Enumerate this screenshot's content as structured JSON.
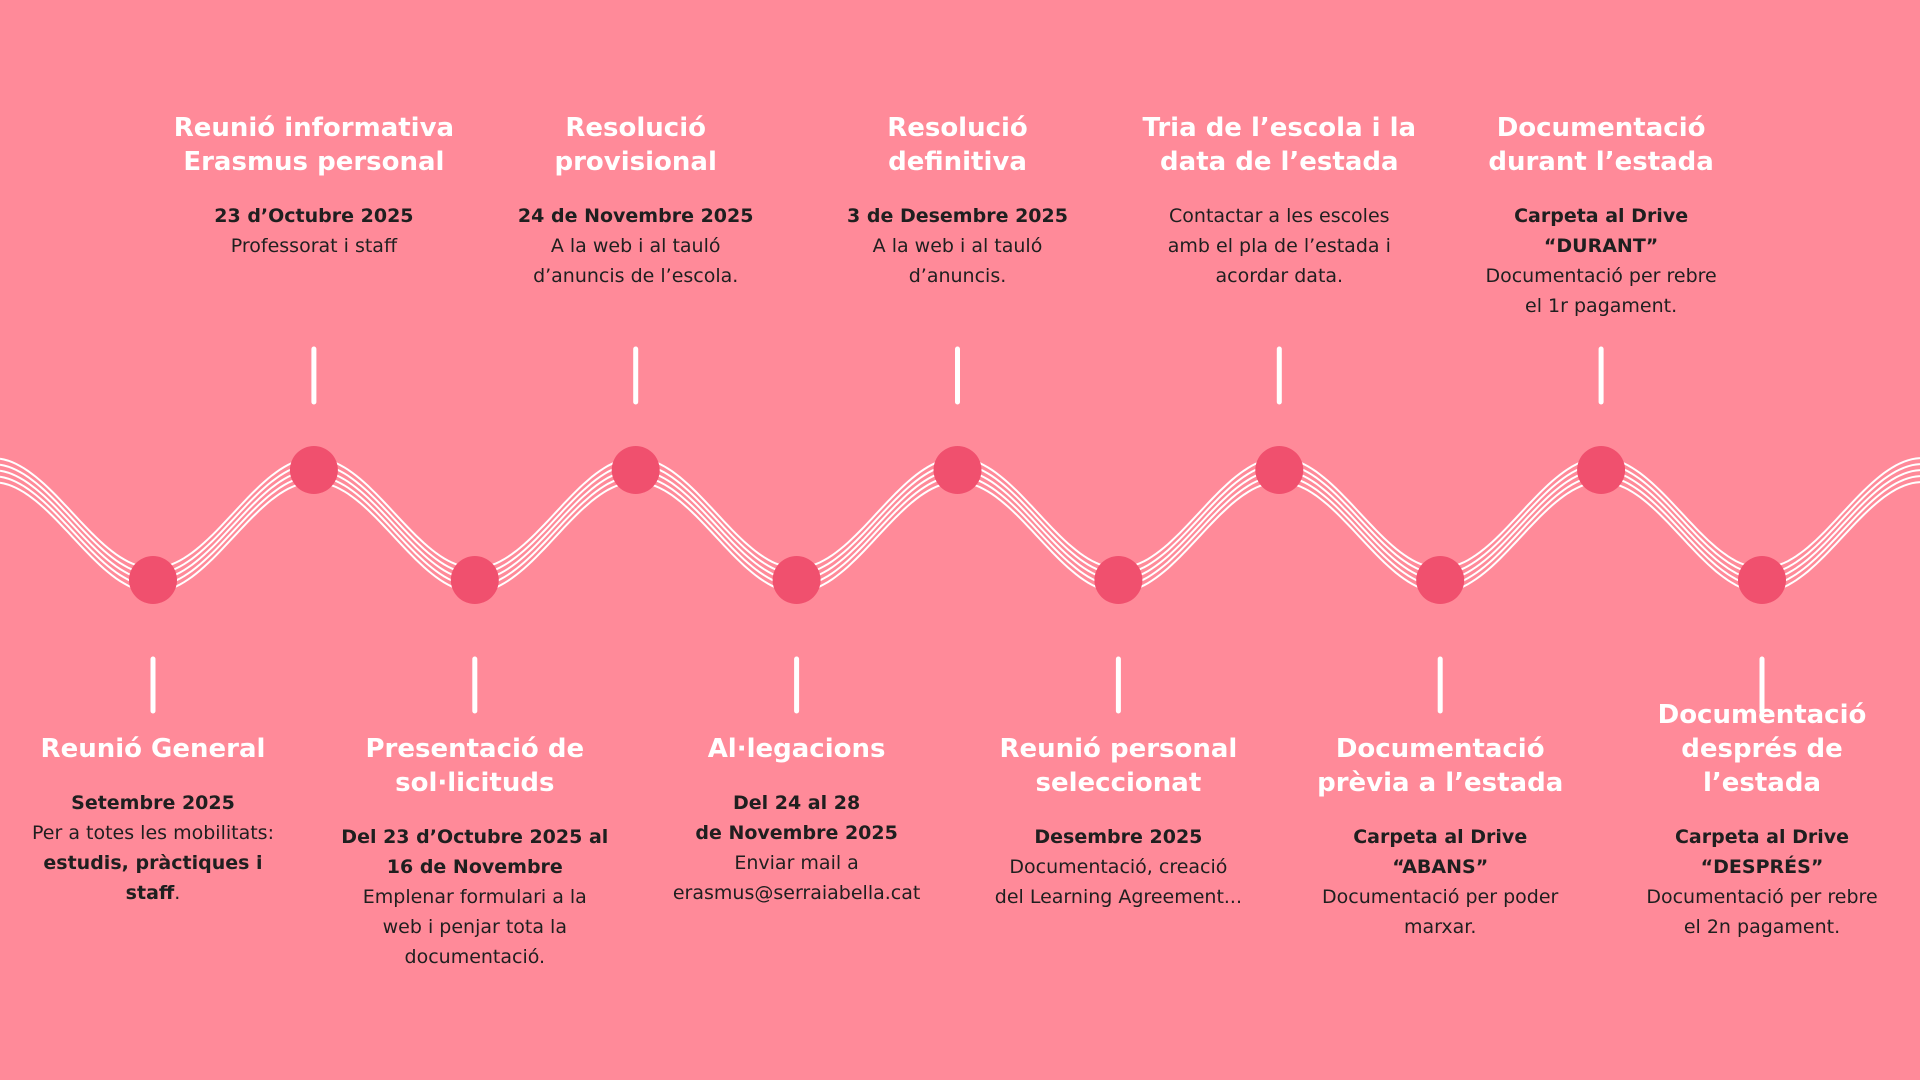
{
  "timeline": {
    "items": [
      {
        "title": [
          "Reunió General"
        ],
        "body": [
          [
            {
              "text": "Setembre 2025",
              "bold": true
            }
          ],
          [
            {
              "text": "Per a totes les mobilitats:",
              "bold": false
            }
          ],
          [
            {
              "text": "estudis, pràctiques i",
              "bold": true
            }
          ],
          [
            {
              "text": "staff",
              "bold": true
            },
            {
              "text": ".",
              "bold": false
            }
          ]
        ]
      },
      {
        "title": [
          "Reunió informativa",
          "Erasmus personal"
        ],
        "body": [
          [
            {
              "text": "23 d’Octubre 2025",
              "bold": true
            }
          ],
          [
            {
              "text": "Professorat i staff",
              "bold": false
            }
          ]
        ]
      },
      {
        "title": [
          "Presentació de",
          "sol·licituds"
        ],
        "body": [
          [
            {
              "text": "Del 23 d’Octubre 2025 al",
              "bold": true
            }
          ],
          [
            {
              "text": "16 de Novembre",
              "bold": true
            }
          ],
          [
            {
              "text": "Emplenar formulari a la",
              "bold": false
            }
          ],
          [
            {
              "text": "web i penjar tota la",
              "bold": false
            }
          ],
          [
            {
              "text": "documentació.",
              "bold": false
            }
          ]
        ]
      },
      {
        "title": [
          "Resolució",
          "provisional"
        ],
        "body": [
          [
            {
              "text": "24 de Novembre 2025",
              "bold": true
            }
          ],
          [
            {
              "text": "A la web i al tauló",
              "bold": false
            }
          ],
          [
            {
              "text": "d’anuncis de l’escola.",
              "bold": false
            }
          ]
        ]
      },
      {
        "title": [
          "Al·legacions"
        ],
        "body": [
          [
            {
              "text": "Del 24 al 28",
              "bold": true
            }
          ],
          [
            {
              "text": "de Novembre 2025",
              "bold": true
            }
          ],
          [
            {
              "text": "Enviar mail a",
              "bold": false
            }
          ],
          [
            {
              "text": "erasmus@serraiabella.cat",
              "bold": false
            }
          ]
        ]
      },
      {
        "title": [
          "Resolució",
          "definitiva"
        ],
        "body": [
          [
            {
              "text": "3 de Desembre 2025",
              "bold": true
            }
          ],
          [
            {
              "text": "A la web i al tauló",
              "bold": false
            }
          ],
          [
            {
              "text": "d’anuncis.",
              "bold": false
            }
          ]
        ]
      },
      {
        "title": [
          "Reunió personal",
          "seleccionat"
        ],
        "body": [
          [
            {
              "text": "Desembre 2025",
              "bold": true
            }
          ],
          [
            {
              "text": "Documentació, creació",
              "bold": false
            }
          ],
          [
            {
              "text": "del Learning Agreement...",
              "bold": false
            }
          ]
        ]
      },
      {
        "title": [
          "Tria de l’escola i la",
          "data de l’estada"
        ],
        "body": [
          [
            {
              "text": "Contactar a les escoles",
              "bold": false
            }
          ],
          [
            {
              "text": "amb el pla de l’estada i",
              "bold": false
            }
          ],
          [
            {
              "text": "acordar data.",
              "bold": false
            }
          ]
        ]
      },
      {
        "title": [
          "Documentació",
          "prèvia a l’estada"
        ],
        "body": [
          [
            {
              "text": "Carpeta al Drive",
              "bold": true
            }
          ],
          [
            {
              "text": "“ABANS”",
              "bold": true
            }
          ],
          [
            {
              "text": "Documentació per poder",
              "bold": false
            }
          ],
          [
            {
              "text": "marxar.",
              "bold": false
            }
          ]
        ]
      },
      {
        "title": [
          "Documentació",
          "durant l’estada"
        ],
        "body": [
          [
            {
              "text": "Carpeta al Drive",
              "bold": true
            }
          ],
          [
            {
              "text": "“DURANT”",
              "bold": true
            }
          ],
          [
            {
              "text": "Documentació per rebre",
              "bold": false
            }
          ],
          [
            {
              "text": "el 1r pagament.",
              "bold": false
            }
          ]
        ]
      },
      {
        "title": [
          "Documentació",
          "després de",
          "l’estada"
        ],
        "body": [
          [
            {
              "text": "Carpeta al Drive",
              "bold": true
            }
          ],
          [
            {
              "text": "“DESPRÉS”",
              "bold": true
            }
          ],
          [
            {
              "text": "Documentació per rebre",
              "bold": false
            }
          ],
          [
            {
              "text": "el 2n pagament.",
              "bold": false
            }
          ]
        ]
      }
    ]
  }
}
